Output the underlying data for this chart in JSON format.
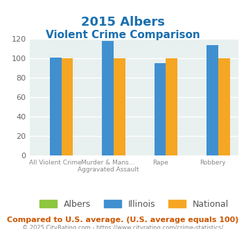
{
  "title_line1": "2015 Albers",
  "title_line2": "Violent Crime Comparison",
  "title_color": "#1a6faf",
  "categories": [
    "All Violent Crime",
    "Murder & Mans...\nAggravated Assault",
    "Rape",
    "Robbery"
  ],
  "series": {
    "Albers": [
      0,
      0,
      0,
      0
    ],
    "Illinois": [
      101,
      118,
      95,
      114
    ],
    "National": [
      100,
      100,
      100,
      100
    ]
  },
  "colors": {
    "Albers": "#8dc63f",
    "Illinois": "#4090d0",
    "National": "#f5a623"
  },
  "ylim": [
    0,
    120
  ],
  "yticks": [
    0,
    20,
    40,
    60,
    80,
    100,
    120
  ],
  "bg_color": "#e8f0f0",
  "grid_color": "#ffffff",
  "footnote1": "Compared to U.S. average. (U.S. average equals 100)",
  "footnote2": "© 2025 CityRating.com - https://www.cityrating.com/crime-statistics/",
  "footnote1_color": "#cc5500",
  "footnote2_color": "#888888"
}
